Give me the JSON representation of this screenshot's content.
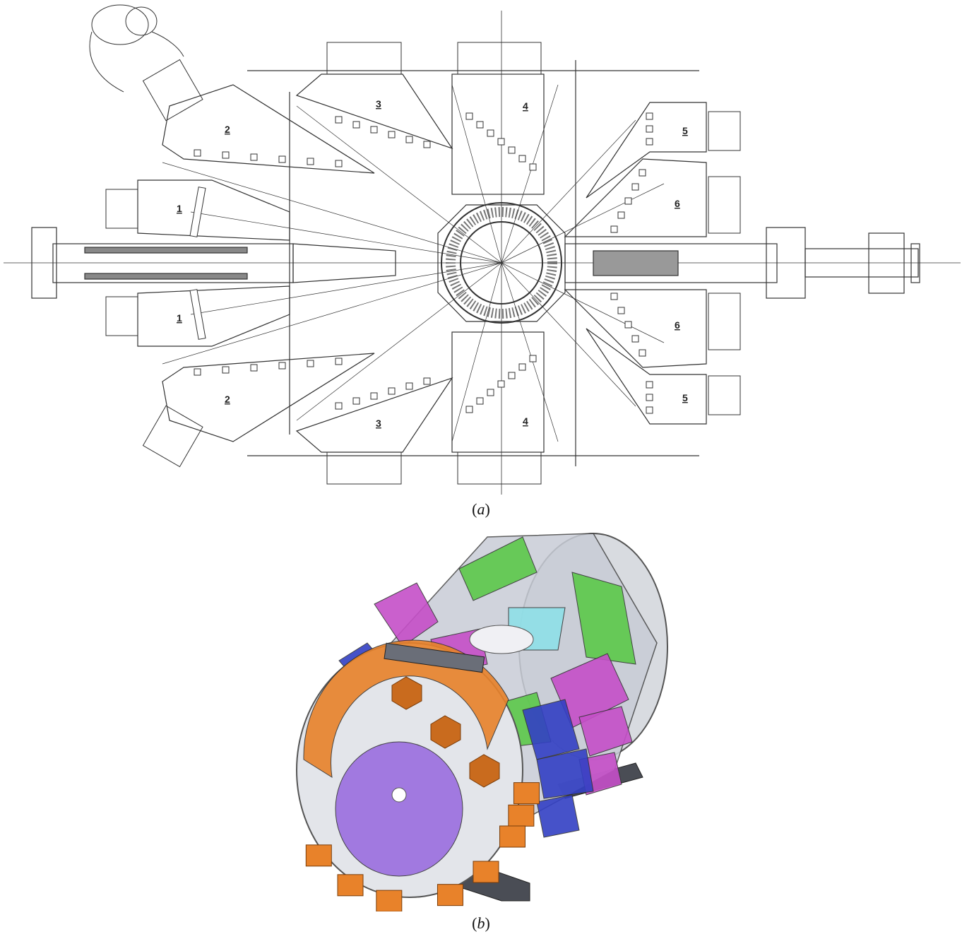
{
  "captions": {
    "a": "a",
    "b": "b"
  },
  "panel_a": {
    "modules": [
      {
        "id": "upper-1",
        "label": "1"
      },
      {
        "id": "lower-1",
        "label": "1"
      },
      {
        "id": "upper-2",
        "label": "2"
      },
      {
        "id": "lower-2",
        "label": "2"
      },
      {
        "id": "upper-3",
        "label": "3"
      },
      {
        "id": "lower-3",
        "label": "3"
      },
      {
        "id": "upper-4",
        "label": "4"
      },
      {
        "id": "lower-4",
        "label": "4"
      },
      {
        "id": "upper-5",
        "label": "5"
      },
      {
        "id": "lower-5",
        "label": "5"
      },
      {
        "id": "upper-6",
        "label": "6"
      },
      {
        "id": "lower-6",
        "label": "6"
      }
    ]
  },
  "panel_b": {
    "colors": {
      "orange": "#e8822a",
      "magenta": "#c54fc8",
      "blue": "#3340c4",
      "green": "#5cc94a",
      "purple": "#9a6ee0",
      "cyan": "#8fe0e8",
      "frame": "#9aa0aa"
    }
  }
}
